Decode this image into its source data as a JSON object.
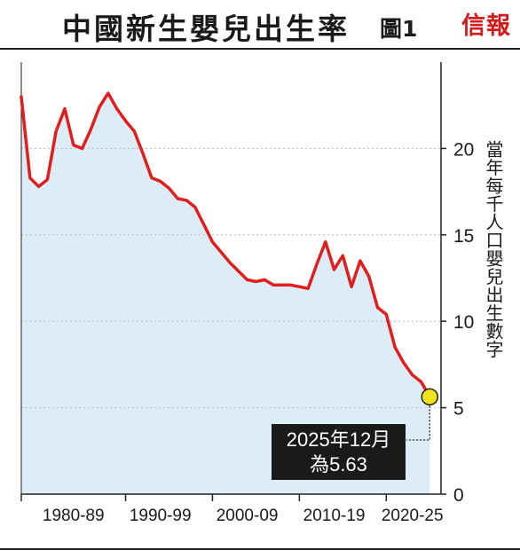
{
  "header": {
    "title": "中國新生嬰兒出生率",
    "figure_label": "圖1",
    "logo": "信報"
  },
  "callout": {
    "line1": "2025年12月",
    "line2": "為5.63"
  },
  "colors": {
    "line": "#e01e1e",
    "area": "#dcedf8",
    "marker": "#f2e21c",
    "grid": "#b9b9b9",
    "text": "#1a1a1a",
    "logo": "#d21c1c"
  },
  "chart_data": {
    "type": "area",
    "ylabel": "當年每千人口嬰兒出生數字",
    "ylim": [
      0,
      25
    ],
    "yticks": [
      0,
      5,
      10,
      15,
      20
    ],
    "grid": true,
    "xticks": [
      "1980-89",
      "1990-99",
      "2000-09",
      "2010-19",
      "2020-25"
    ],
    "series": [
      {
        "x": [
          1978,
          1979,
          1980,
          1981,
          1982,
          1983,
          1984,
          1985,
          1986,
          1987,
          1988,
          1989,
          1990,
          1991,
          1992,
          1993,
          1994,
          1995,
          1996,
          1997,
          1998,
          1999,
          2000,
          2001,
          2002,
          2003,
          2004,
          2005,
          2006,
          2007,
          2008,
          2009,
          2010,
          2011,
          2012,
          2013,
          2014,
          2015,
          2016,
          2017,
          2018,
          2019,
          2020,
          2021,
          2022,
          2023,
          2024,
          2025
        ],
        "values": [
          23.0,
          18.3,
          17.8,
          18.2,
          21.0,
          22.3,
          20.2,
          20.0,
          21.1,
          22.4,
          23.2,
          22.3,
          21.6,
          21.0,
          19.7,
          18.3,
          18.1,
          17.7,
          17.1,
          17.0,
          16.6,
          15.6,
          14.6,
          14.0,
          13.4,
          12.9,
          12.4,
          12.3,
          12.4,
          12.1,
          12.1,
          12.1,
          12.0,
          11.9,
          13.3,
          14.6,
          13.0,
          13.8,
          12.0,
          13.5,
          12.6,
          10.8,
          10.4,
          8.5,
          7.6,
          6.9,
          6.5,
          5.63
        ]
      }
    ],
    "highlight": {
      "x": 2025,
      "y": 5.63
    }
  }
}
